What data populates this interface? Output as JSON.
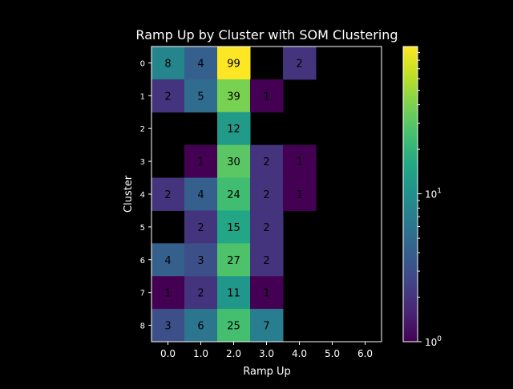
{
  "chart_data": {
    "type": "heatmap",
    "title": "Ramp Up by Cluster with SOM Clustering",
    "xlabel": "Ramp Up",
    "ylabel": "Cluster",
    "x_categories": [
      "0.0",
      "1.0",
      "2.0",
      "3.0",
      "4.0",
      "5.0",
      "6.0"
    ],
    "y_categories": [
      "0",
      "1",
      "2",
      "3",
      "4",
      "5",
      "6",
      "7",
      "8"
    ],
    "values": [
      [
        8,
        4,
        99,
        null,
        2,
        null,
        null
      ],
      [
        2,
        5,
        39,
        1,
        null,
        null,
        null
      ],
      [
        null,
        null,
        12,
        null,
        null,
        null,
        null
      ],
      [
        null,
        1,
        30,
        2,
        1,
        null,
        null
      ],
      [
        2,
        4,
        24,
        2,
        1,
        null,
        null
      ],
      [
        null,
        2,
        15,
        2,
        null,
        null,
        null
      ],
      [
        4,
        3,
        27,
        2,
        null,
        null,
        null
      ],
      [
        1,
        2,
        11,
        1,
        null,
        null,
        null
      ],
      [
        3,
        6,
        25,
        7,
        null,
        null,
        null
      ]
    ],
    "colormap": "viridis",
    "color_scale": "log",
    "color_range": [
      1,
      99
    ],
    "colorbar_ticks": [
      {
        "value": 1,
        "base": "10",
        "exp": "0"
      },
      {
        "value": 10,
        "base": "10",
        "exp": "1"
      }
    ],
    "missing_color": "#000000",
    "grid": false,
    "legend": "none"
  }
}
